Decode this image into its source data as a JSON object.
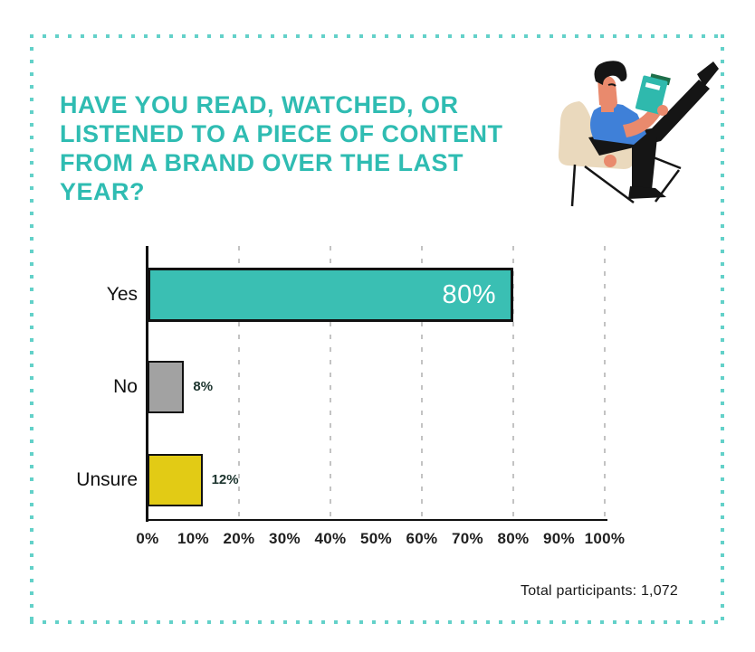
{
  "page": {
    "background_color": "#ffffff",
    "border_dot_color": "#63d1c9"
  },
  "header": {
    "title_lines": [
      "Have you read, watched, or",
      "listened to a piece of content",
      "from a brand over the last",
      "year?"
    ],
    "title_color": "#2fbcb2"
  },
  "illustration": {
    "description": "person sitting on a chair reading a teal book",
    "colors": {
      "skin": "#e98a6d",
      "shirt": "#3f80d8",
      "chair": "#ead9bd",
      "book": "#2fb9ad",
      "book_pages": "#1e6e49",
      "dark": "#151515"
    }
  },
  "chart_data": {
    "type": "bar",
    "orientation": "horizontal",
    "title": "Have you read, watched, or listened to a piece of content from a brand over the last year?",
    "categories": [
      "Yes",
      "No",
      "Unsure"
    ],
    "values": [
      80,
      8,
      12
    ],
    "value_labels": [
      "80%",
      "8%",
      "12%"
    ],
    "value_label_inside": [
      true,
      false,
      false
    ],
    "bar_colors": [
      "#3abfb3",
      "#a2a2a2",
      "#e2cb15"
    ],
    "outside_label_color": "#1c342e",
    "axis_color": "#111111",
    "grid": true,
    "gridlines_percent": [
      20,
      40,
      60,
      80,
      100
    ],
    "xlabel": "",
    "ylabel": "",
    "xlim": [
      0,
      100
    ],
    "x_ticks": [
      "0%",
      "10%",
      "20%",
      "30%",
      "40%",
      "50%",
      "60%",
      "70%",
      "80%",
      "90%",
      "100%"
    ],
    "legend": false
  },
  "footer": {
    "total_label": "Total participants: 1,072"
  }
}
